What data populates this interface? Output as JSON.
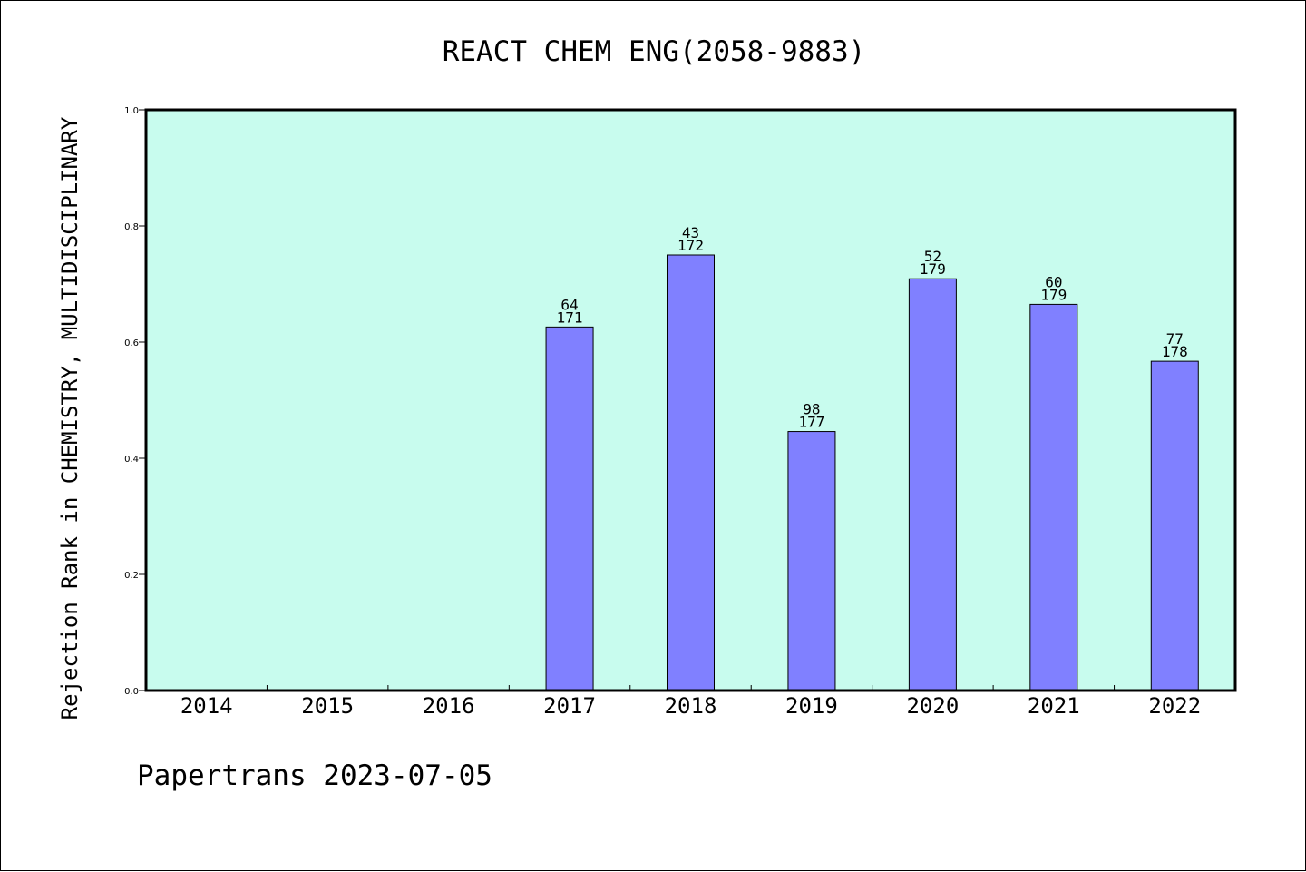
{
  "chart_data": {
    "type": "bar",
    "title": "REACT CHEM ENG(2058-9883)",
    "xlabel": "",
    "ylabel": "Rejection Rank in CHEMISTRY, MULTIDISCIPLINARY",
    "ylim": [
      0,
      1.0
    ],
    "yticks": [
      "0.0",
      "0.2",
      "0.4",
      "0.6",
      "0.8",
      "1.0"
    ],
    "categories": [
      "2014",
      "2015",
      "2016",
      "2017",
      "2018",
      "2019",
      "2020",
      "2021",
      "2022"
    ],
    "values": [
      null,
      null,
      null,
      0.626,
      0.75,
      0.446,
      0.709,
      0.665,
      0.567
    ],
    "rank": [
      null,
      null,
      null,
      "64",
      "43",
      "98",
      "52",
      "60",
      "77"
    ],
    "total": [
      null,
      null,
      null,
      "171",
      "172",
      "177",
      "179",
      "179",
      "178"
    ],
    "grid": false,
    "colors": {
      "plot_bg": "#c8fcee",
      "bar": "#8080ff"
    }
  },
  "footer": "Papertrans 2023-07-05"
}
